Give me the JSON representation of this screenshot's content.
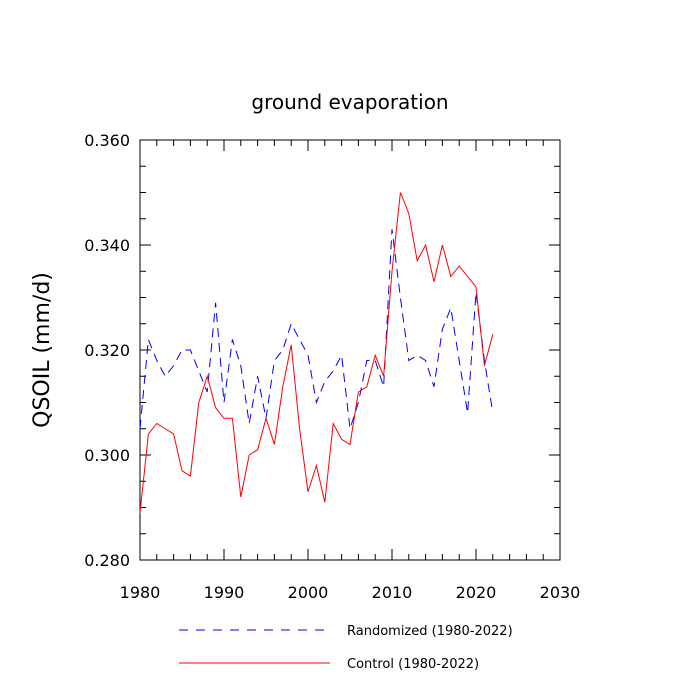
{
  "chart_data": {
    "type": "line",
    "title": "ground evaporation",
    "xlabel": "",
    "ylabel": "QSOIL  (mm/d)",
    "xlim": [
      1980,
      2030
    ],
    "ylim": [
      0.28,
      0.36
    ],
    "xticks": [
      1980,
      1990,
      2000,
      2010,
      2020,
      2030
    ],
    "xtick_labels": [
      "1980",
      "1990",
      "2000",
      "2010",
      "2020",
      "2030"
    ],
    "yticks": [
      0.28,
      0.3,
      0.32,
      0.34,
      0.36
    ],
    "ytick_labels": [
      "0.280",
      "0.300",
      "0.320",
      "0.340",
      "0.360"
    ],
    "grid": false,
    "legend_position": "bottom",
    "x": [
      1980,
      1981,
      1982,
      1983,
      1984,
      1985,
      1986,
      1987,
      1988,
      1989,
      1990,
      1991,
      1992,
      1993,
      1994,
      1995,
      1996,
      1997,
      1998,
      1999,
      2000,
      2001,
      2002,
      2003,
      2004,
      2005,
      2006,
      2007,
      2008,
      2009,
      2010,
      2011,
      2012,
      2013,
      2014,
      2015,
      2016,
      2017,
      2018,
      2019,
      2020,
      2021,
      2022
    ],
    "series": [
      {
        "name": "Randomized (1980-2022)",
        "color": "#0000ff",
        "dash": "dashed",
        "values": [
          0.305,
          0.322,
          0.318,
          0.315,
          0.317,
          0.32,
          0.32,
          0.316,
          0.312,
          0.329,
          0.31,
          0.322,
          0.317,
          0.306,
          0.315,
          0.307,
          0.318,
          0.32,
          0.325,
          0.322,
          0.319,
          0.31,
          0.314,
          0.316,
          0.319,
          0.305,
          0.31,
          0.318,
          0.318,
          0.313,
          0.343,
          0.33,
          0.318,
          0.319,
          0.318,
          0.313,
          0.324,
          0.328,
          0.318,
          0.308,
          0.331,
          0.318,
          0.308
        ]
      },
      {
        "name": "Control (1980-2022)",
        "color": "#ff0000",
        "dash": "solid",
        "values": [
          0.289,
          0.304,
          0.306,
          0.305,
          0.304,
          0.297,
          0.296,
          0.31,
          0.315,
          0.309,
          0.307,
          0.307,
          0.292,
          0.3,
          0.301,
          0.307,
          0.302,
          0.313,
          0.321,
          0.305,
          0.293,
          0.298,
          0.291,
          0.306,
          0.303,
          0.302,
          0.312,
          0.313,
          0.319,
          0.315,
          0.335,
          0.35,
          0.346,
          0.337,
          0.34,
          0.333,
          0.34,
          0.334,
          0.336,
          0.334,
          0.332,
          0.317,
          0.323
        ]
      }
    ]
  }
}
